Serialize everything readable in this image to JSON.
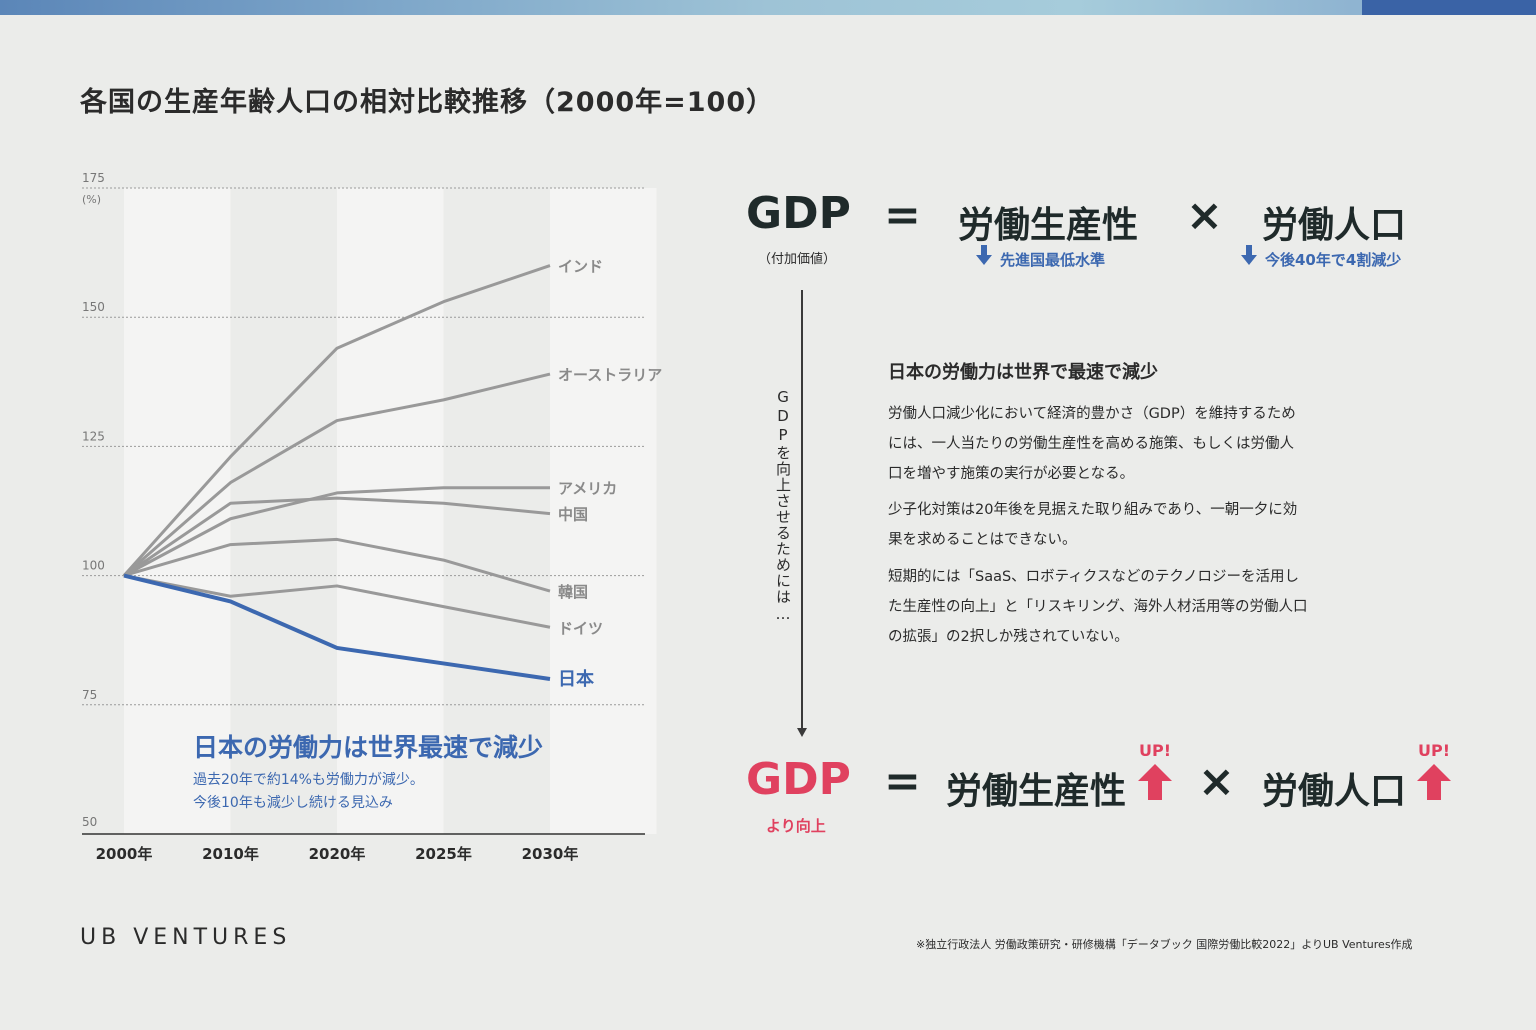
{
  "title": "各国の生産年齢人口の相対比較推移（2000年=100）",
  "colors": {
    "accent_blue": "#3c68b0",
    "accent_pink": "#e0415f",
    "line_gray": "#999999",
    "background": "#ebecea"
  },
  "chart_data": {
    "type": "line",
    "title": "各国の生産年齢人口の相対比較推移（2000年=100）",
    "x": [
      "2000年",
      "2010年",
      "2020年",
      "2025年",
      "2030年"
    ],
    "y_unit_label": "(%)",
    "ylim": [
      50,
      175
    ],
    "yticks": [
      50,
      75,
      100,
      125,
      150,
      175
    ],
    "grid": true,
    "series": [
      {
        "name": "インド",
        "values": [
          100,
          123,
          144,
          153,
          160
        ],
        "highlight": false
      },
      {
        "name": "オーストラリア",
        "values": [
          100,
          118,
          130,
          134,
          139
        ],
        "highlight": false
      },
      {
        "name": "アメリカ",
        "values": [
          100,
          111,
          116,
          117,
          117
        ],
        "highlight": false
      },
      {
        "name": "中国",
        "values": [
          100,
          114,
          115,
          114,
          112
        ],
        "highlight": false
      },
      {
        "name": "韓国",
        "values": [
          100,
          106,
          107,
          103,
          97
        ],
        "highlight": false
      },
      {
        "name": "ドイツ",
        "values": [
          100,
          96,
          98,
          94,
          90
        ],
        "highlight": false
      },
      {
        "name": "日本",
        "values": [
          100,
          95,
          86,
          83,
          80
        ],
        "highlight": true
      }
    ],
    "annotation": {
      "title": "日本の労働力は世界最速で減少",
      "lines": [
        "過去20年で約14%も労働力が減少。",
        "今後10年も減少し続ける見込み"
      ]
    }
  },
  "equation_top": {
    "gdp": "GDP",
    "gdp_sub": "（付加価値）",
    "equals": "=",
    "term1": "労働生産性",
    "times": "×",
    "term2": "労働人口",
    "note1": "先進国最低水準",
    "note2": "今後40年で4割減少"
  },
  "vertical_text": "GDPを向上させるためには…",
  "body": {
    "heading": "日本の労働力は世界で最速で減少",
    "para1": "労働人口減少化において経済的豊かさ（GDP）を維持するためには、一人当たりの労働生産性を高める施策、もしくは労働人口を増やす施策の実行が必要となる。",
    "para2": "少子化対策は20年後を見据えた取り組みであり、一朝一夕に効果を求めることはできない。",
    "para3": "短期的には「SaaS、ロボティクスなどのテクノロジーを活用した生産性の向上」と「リスキリング、海外人材活用等の労働人口の拡張」の2択しか残されていない。"
  },
  "equation_bottom": {
    "gdp": "GDP",
    "gdp_sub": "より向上",
    "equals": "=",
    "term1": "労働生産性",
    "times": "×",
    "term2": "労働人口",
    "up1": "UP!",
    "up2": "UP!"
  },
  "logo": "UB VENTURES",
  "footnote": "※独立行政法人 労働政策研究・研修機構「データブック 国際労働比較2022」よりUB Ventures作成"
}
